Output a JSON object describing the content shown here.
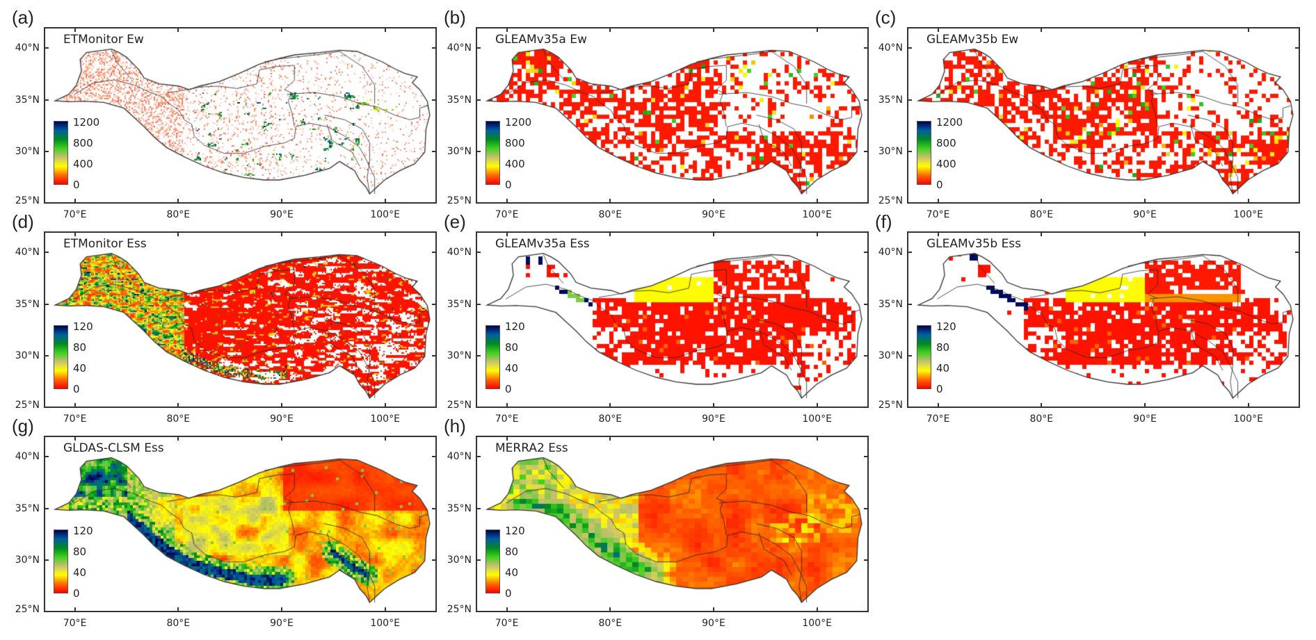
{
  "figure": {
    "extent": {
      "lon": [
        67,
        105
      ],
      "lat": [
        25,
        42
      ]
    },
    "lon_ticks": [
      {
        "value": 70,
        "label": "70°E"
      },
      {
        "value": 80,
        "label": "80°E"
      },
      {
        "value": 90,
        "label": "90°E"
      },
      {
        "value": 100,
        "label": "100°E"
      }
    ],
    "lat_ticks": [
      {
        "value": 25,
        "label": "25°N"
      },
      {
        "value": 30,
        "label": "30°N"
      },
      {
        "value": 35,
        "label": "35°N"
      },
      {
        "value": 40,
        "label": "40°N"
      }
    ],
    "colormap": [
      "#ff0000",
      "#ff6a00",
      "#ffff00",
      "#c8c070",
      "#40d020",
      "#008a20",
      "#0060a0",
      "#000050"
    ],
    "outline_color": "#333333"
  },
  "panels": [
    {
      "label": "(a)",
      "title": "ETMonitor Ew",
      "field": "ew_etm",
      "colorbar": {
        "max": 1200,
        "ticks": [
          "1200",
          "800",
          "400",
          "0"
        ]
      }
    },
    {
      "label": "(b)",
      "title": "GLEAMv35a Ew",
      "field": "ew_gleam_a",
      "colorbar": {
        "max": 1200,
        "ticks": [
          "1200",
          "800",
          "400",
          "0"
        ]
      }
    },
    {
      "label": "(c)",
      "title": "GLEAMv35b Ew",
      "field": "ew_gleam_b",
      "colorbar": {
        "max": 1200,
        "ticks": [
          "1200",
          "800",
          "400",
          "0"
        ]
      }
    },
    {
      "label": "(d)",
      "title": "ETMonitor Ess",
      "field": "ess_etm",
      "colorbar": {
        "max": 120,
        "ticks": [
          "120",
          "80",
          "40",
          "0"
        ]
      }
    },
    {
      "label": "(e)",
      "title": "GLEAMv35a Ess",
      "field": "ess_gleam_a",
      "colorbar": {
        "max": 120,
        "ticks": [
          "120",
          "80",
          "40",
          "0"
        ]
      }
    },
    {
      "label": "(f)",
      "title": "GLEAMv35b Ess",
      "field": "ess_gleam_b",
      "colorbar": {
        "max": 120,
        "ticks": [
          "120",
          "80",
          "40",
          "0"
        ]
      }
    },
    {
      "label": "(g)",
      "title": "GLDAS-CLSM Ess",
      "field": "ess_gldas",
      "colorbar": {
        "max": 120,
        "ticks": [
          "120",
          "80",
          "40",
          "0"
        ]
      }
    },
    {
      "label": "(h)",
      "title": "MERRA2 Ess",
      "field": "ess_merra",
      "colorbar": {
        "max": 120,
        "ticks": [
          "120",
          "80",
          "40",
          "0"
        ]
      }
    }
  ]
}
